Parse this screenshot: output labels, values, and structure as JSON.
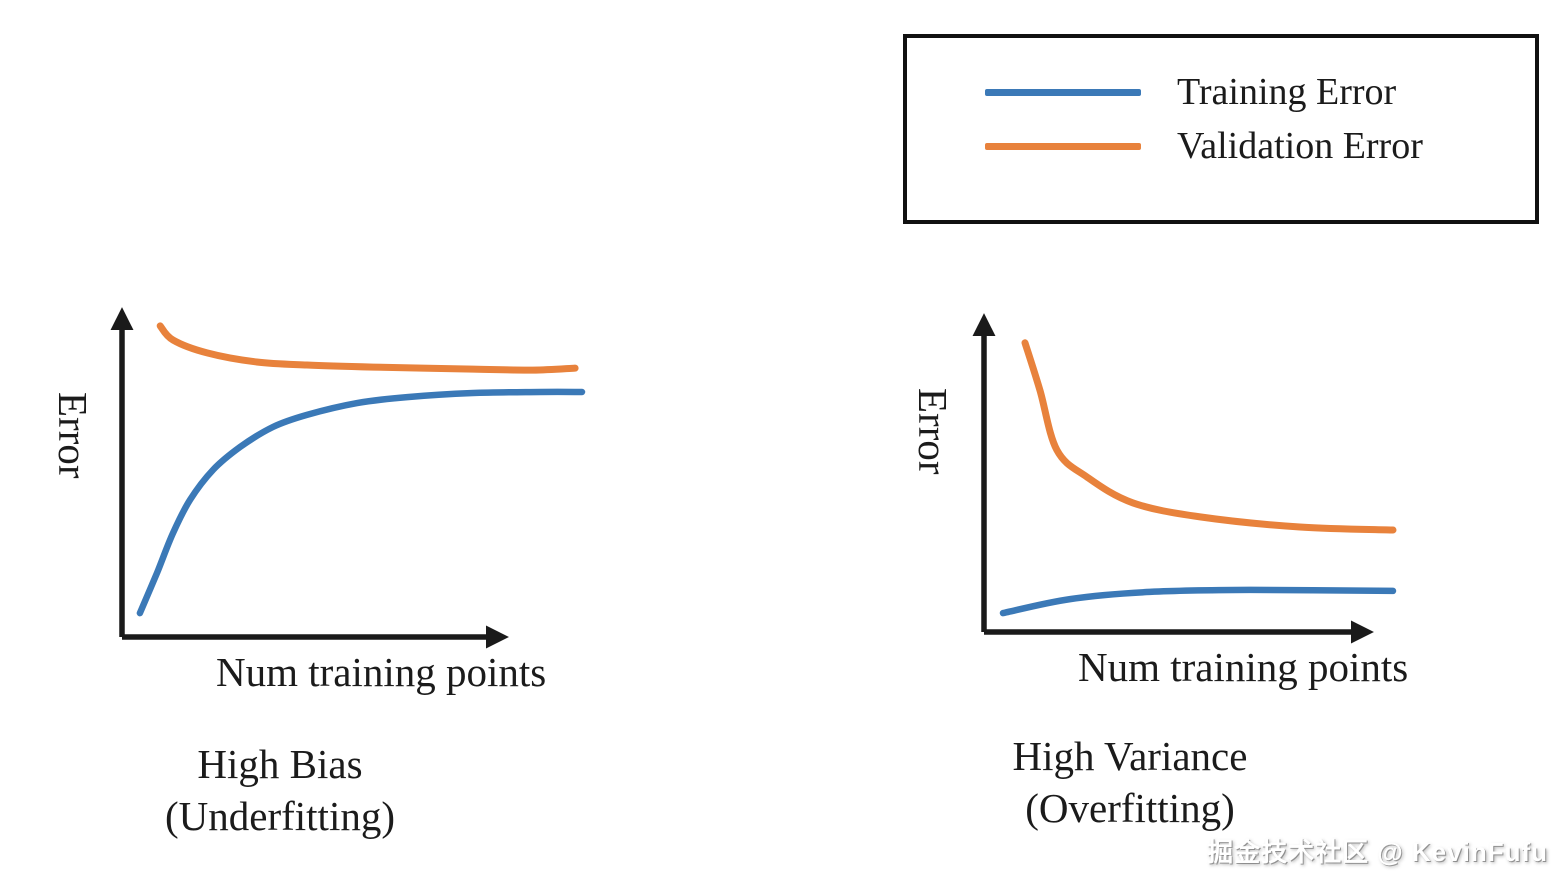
{
  "colors": {
    "training_error": "#3b79b7",
    "validation_error": "#e8823c",
    "axis": "#1a1a1a",
    "text": "#1b1b1b",
    "legend_border": "#111111",
    "background": "#ffffff"
  },
  "legend": {
    "items": [
      {
        "label": "Training Error",
        "color": "#3b79b7"
      },
      {
        "label": "Validation Error",
        "color": "#e8823c"
      }
    ]
  },
  "watermark": {
    "text": "掘金技术社区 @ KevinFufu"
  },
  "chart_data": [
    {
      "id": "high-bias",
      "type": "line",
      "title": "High Bias (Underfitting)",
      "caption_line1": "High Bias",
      "caption_line2": "(Underfitting)",
      "xlabel": "Num training points",
      "ylabel": "Error",
      "x_range": [
        0,
        1
      ],
      "y_range": [
        0,
        1
      ],
      "grid": false,
      "ticks": "none (conceptual sketch axes with arrowheads)",
      "legend_position": "figure top-right shared box",
      "series": [
        {
          "name": "Training Error",
          "color": "#3b79b7",
          "points": [
            [
              0.039,
              0.071
            ],
            [
              0.076,
              0.19
            ],
            [
              0.111,
              0.309
            ],
            [
              0.148,
              0.407
            ],
            [
              0.198,
              0.496
            ],
            [
              0.257,
              0.564
            ],
            [
              0.328,
              0.623
            ],
            [
              0.402,
              0.659
            ],
            [
              0.511,
              0.694
            ],
            [
              0.62,
              0.712
            ],
            [
              0.763,
              0.724
            ],
            [
              0.909,
              0.727
            ],
            [
              1.0,
              0.727
            ]
          ]
        },
        {
          "name": "Validation Error",
          "color": "#e8823c",
          "points": [
            [
              0.083,
              0.923
            ],
            [
              0.111,
              0.881
            ],
            [
              0.185,
              0.843
            ],
            [
              0.293,
              0.816
            ],
            [
              0.402,
              0.807
            ],
            [
              0.546,
              0.801
            ],
            [
              0.763,
              0.795
            ],
            [
              0.893,
              0.792
            ],
            [
              0.985,
              0.798
            ]
          ]
        }
      ]
    },
    {
      "id": "high-variance",
      "type": "line",
      "title": "High Variance (Overfitting)",
      "caption_line1": "High Variance",
      "caption_line2": "(Overfitting)",
      "xlabel": "Num training points",
      "ylabel": "Error",
      "x_range": [
        0,
        1
      ],
      "y_range": [
        0,
        1
      ],
      "grid": false,
      "ticks": "none (conceptual sketch axes with arrowheads)",
      "legend_position": "figure top-right shared box",
      "series": [
        {
          "name": "Training Error",
          "color": "#3b79b7",
          "points": [
            [
              0.046,
              0.058
            ],
            [
              0.208,
              0.101
            ],
            [
              0.401,
              0.123
            ],
            [
              0.643,
              0.129
            ],
            [
              0.988,
              0.126
            ]
          ]
        },
        {
          "name": "Validation Error",
          "color": "#e8823c",
          "points": [
            [
              0.099,
              0.887
            ],
            [
              0.135,
              0.742
            ],
            [
              0.176,
              0.558
            ],
            [
              0.249,
              0.475
            ],
            [
              0.36,
              0.396
            ],
            [
              0.522,
              0.353
            ],
            [
              0.763,
              0.322
            ],
            [
              0.988,
              0.313
            ]
          ]
        }
      ]
    }
  ]
}
